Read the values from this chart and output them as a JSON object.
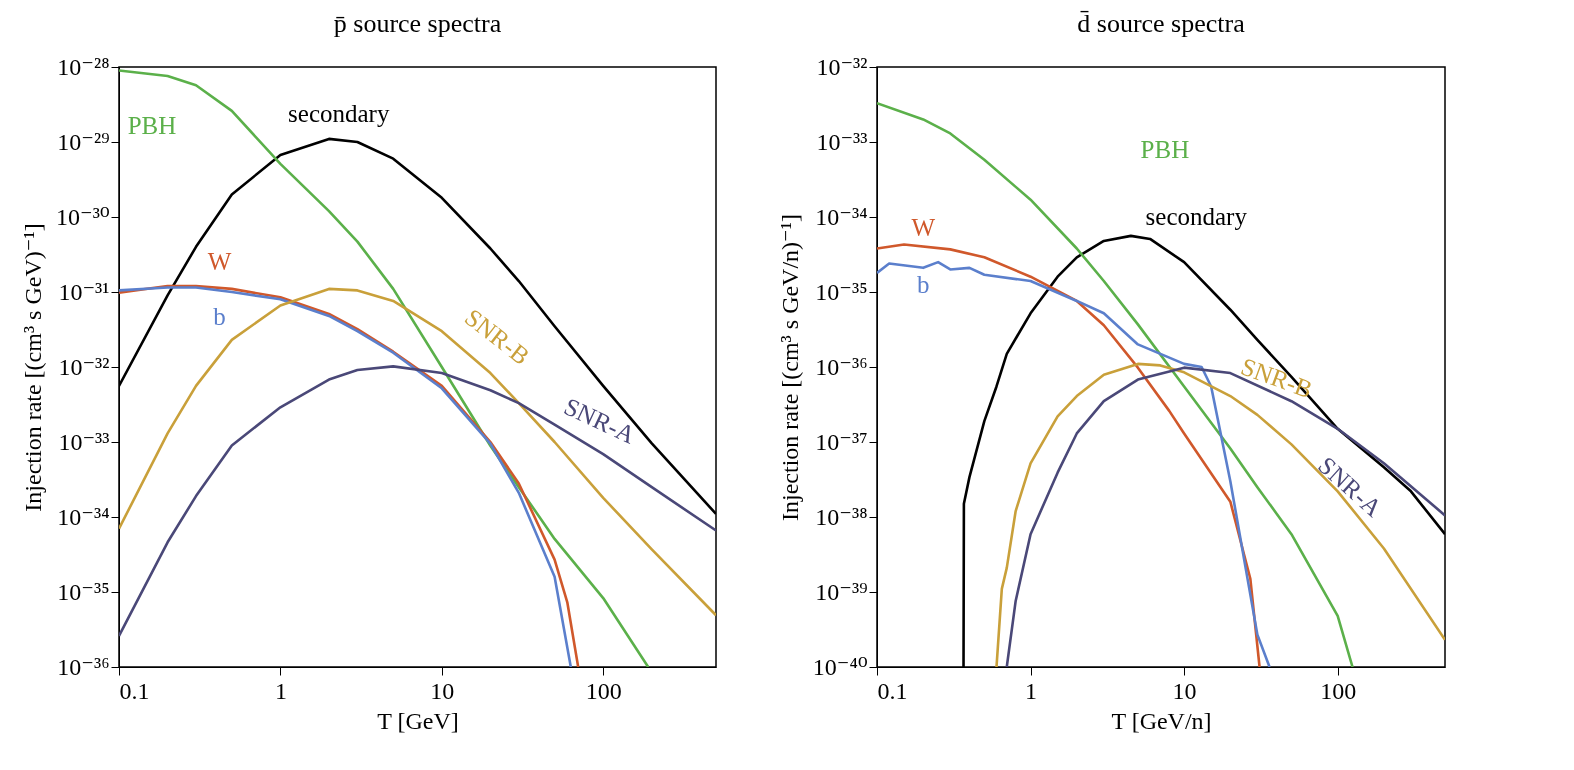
{
  "chart_data": [
    {
      "type": "line",
      "title": "p̄ source spectra",
      "xlabel": "T [GeV]",
      "ylabel": "Injection rate [(cm³ s GeV)⁻¹]",
      "log": "xy",
      "xlim": [
        0.1,
        500
      ],
      "xticks": [
        0.1,
        1,
        10,
        100
      ],
      "ylim": [
        1e-36,
        1e-28
      ],
      "yticks": [
        {
          "value": 1e-28,
          "label": "10⁻²⁸"
        },
        {
          "value": 1e-29,
          "label": "10⁻²⁹"
        },
        {
          "value": 1e-30,
          "label": "10⁻³⁰"
        },
        {
          "value": 1e-31,
          "label": "10⁻³¹"
        },
        {
          "value": 1e-32,
          "label": "10⁻³²"
        },
        {
          "value": 1e-33,
          "label": "10⁻³³"
        },
        {
          "value": 1e-34,
          "label": "10⁻³⁴"
        },
        {
          "value": 1e-35,
          "label": "10⁻³⁵"
        },
        {
          "value": 1e-36,
          "label": "10⁻³⁶"
        }
      ],
      "series": [
        {
          "name": "secondary",
          "color": "#000000",
          "x": [
            0.1,
            0.2,
            0.3,
            0.5,
            1,
            2,
            3,
            5,
            10,
            20,
            30,
            50,
            100,
            200,
            500
          ],
          "values": [
            5.6e-33,
            9e-32,
            4e-31,
            2e-30,
            6.7e-30,
            1.1e-29,
            1e-29,
            6e-30,
            1.8e-30,
            3.8e-31,
            1.4e-31,
            3.5e-32,
            5.6e-33,
            9.6e-34,
            1.1e-34
          ]
        },
        {
          "name": "PBH",
          "color": "#5bb04a",
          "x": [
            0.1,
            0.2,
            0.3,
            0.5,
            1,
            2,
            3,
            5,
            10,
            20,
            30,
            50,
            100,
            190
          ],
          "values": [
            9e-29,
            7.6e-29,
            5.7e-29,
            2.6e-29,
            5.1e-30,
            1.2e-30,
            4.7e-31,
            1.1e-31,
            1e-32,
            8.9e-34,
            2.5e-34,
            5.1e-35,
            8.3e-36,
            1e-36
          ]
        },
        {
          "name": "W",
          "color": "#d0582b",
          "x": [
            0.1,
            0.2,
            0.3,
            0.5,
            1,
            2,
            3,
            5,
            10,
            20,
            30,
            50,
            60,
            70
          ],
          "values": [
            9.8e-32,
            1.2e-31,
            1.2e-31,
            1.1e-31,
            8.5e-32,
            5.1e-32,
            3.2e-32,
            1.6e-32,
            5.6e-33,
            1e-33,
            2.8e-34,
            2.7e-35,
            7.2e-36,
            1e-36
          ]
        },
        {
          "name": "b",
          "color": "#5b7fcc",
          "x": [
            0.1,
            0.2,
            0.3,
            0.5,
            1,
            2,
            3,
            5,
            10,
            20,
            30,
            50,
            63
          ],
          "values": [
            1.05e-31,
            1.15e-31,
            1.15e-31,
            1e-31,
            8e-32,
            4.8e-32,
            3e-32,
            1.55e-32,
            5.2e-33,
            9.5e-34,
            2.1e-34,
            1.6e-35,
            1e-36
          ]
        },
        {
          "name": "SNR-B",
          "color": "#c9a03a",
          "x": [
            0.1,
            0.2,
            0.3,
            0.5,
            1,
            2,
            3,
            5,
            10,
            20,
            30,
            50,
            100,
            200,
            500
          ],
          "values": [
            7e-35,
            1.3e-33,
            5.6e-33,
            2.3e-32,
            6.6e-32,
            1.1e-31,
            1.05e-31,
            7.6e-32,
            3e-32,
            8.3e-33,
            3.3e-33,
            1e-33,
            1.8e-34,
            3.7e-35,
            4.9e-36
          ]
        },
        {
          "name": "SNR-A",
          "color": "#4a4878",
          "x": [
            0.1,
            0.2,
            0.3,
            0.5,
            1,
            2,
            3,
            5,
            10,
            20,
            30,
            50,
            100,
            200,
            500
          ],
          "values": [
            2.6e-36,
            4.6e-35,
            1.9e-34,
            9e-34,
            2.9e-33,
            6.8e-33,
            9.1e-33,
            1.02e-32,
            8.3e-33,
            4.9e-33,
            3.3e-33,
            1.7e-33,
            6.9e-34,
            2.5e-34,
            6.6e-35
          ]
        }
      ]
    },
    {
      "type": "line",
      "title": "d̄ source spectra",
      "xlabel": "T [GeV/n]",
      "ylabel": "Injection rate [(cm³ s GeV/n)⁻¹]",
      "log": "xy",
      "xlim": [
        0.1,
        500
      ],
      "xticks": [
        0.1,
        1,
        10,
        100
      ],
      "ylim": [
        1e-40,
        1e-32
      ],
      "yticks": [
        {
          "value": 1e-32,
          "label": "10⁻³²"
        },
        {
          "value": 1e-33,
          "label": "10⁻³³"
        },
        {
          "value": 1e-34,
          "label": "10⁻³⁴"
        },
        {
          "value": 1e-35,
          "label": "10⁻³⁵"
        },
        {
          "value": 1e-36,
          "label": "10⁻³⁶"
        },
        {
          "value": 1e-37,
          "label": "10⁻³⁷"
        },
        {
          "value": 1e-38,
          "label": "10⁻³⁸"
        },
        {
          "value": 1e-39,
          "label": "10⁻³⁹"
        },
        {
          "value": 1e-40,
          "label": "10⁻⁴⁰"
        }
      ],
      "series": [
        {
          "name": "secondary",
          "color": "#000000",
          "x": [
            0.366,
            0.368,
            0.4,
            0.5,
            0.6,
            0.7,
            1,
            1.5,
            2,
            3,
            4.5,
            6,
            10,
            20,
            30,
            50,
            100,
            200,
            300,
            500
          ],
          "values": [
            1e-40,
            1.5e-38,
            3.4e-38,
            1.9e-37,
            5.5e-37,
            1.5e-36,
            5.2e-36,
            1.6e-35,
            2.9e-35,
            4.8e-35,
            5.6e-35,
            5.1e-35,
            2.5e-35,
            5.8e-36,
            2.3e-36,
            7.4e-37,
            1.5e-37,
            4.6e-38,
            2.2e-38,
            5.9e-39
          ]
        },
        {
          "name": "PBH",
          "color": "#5bb04a",
          "x": [
            0.1,
            0.2,
            0.3,
            0.5,
            1,
            2,
            3,
            5,
            10,
            20,
            30,
            50,
            100,
            125
          ],
          "values": [
            3.3e-33,
            2e-33,
            1.3e-33,
            5.8e-34,
            1.7e-34,
            3.8e-35,
            1.4e-35,
            3.7e-36,
            5.5e-37,
            8.2e-38,
            2.5e-38,
            5.9e-39,
            4.8e-40,
            1e-40
          ]
        },
        {
          "name": "W",
          "color": "#d0582b",
          "x": [
            0.1,
            0.15,
            0.3,
            0.5,
            1,
            2,
            3,
            5,
            8,
            10,
            20,
            27,
            31
          ],
          "values": [
            3.8e-35,
            4.3e-35,
            3.7e-35,
            2.9e-35,
            1.6e-35,
            7.6e-36,
            3.6e-36,
            9.8e-37,
            2.6e-37,
            1.3e-37,
            1.6e-38,
            1.5e-39,
            1e-40
          ]
        },
        {
          "name": "b",
          "color": "#5b7fcc",
          "x": [
            0.1,
            0.12,
            0.2,
            0.25,
            0.3,
            0.4,
            0.5,
            1,
            2,
            3,
            5,
            10,
            13,
            15,
            20,
            30,
            36
          ],
          "values": [
            1.8e-35,
            2.4e-35,
            2.1e-35,
            2.5e-35,
            2e-35,
            2.1e-35,
            1.7e-35,
            1.4e-35,
            7.6e-36,
            5.2e-36,
            2e-36,
            1.1e-36,
            1e-36,
            5.5e-37,
            3e-38,
            2.7e-40,
            1e-40
          ]
        },
        {
          "name": "SNR-B",
          "color": "#c9a03a",
          "x": [
            0.6,
            0.65,
            0.7,
            0.8,
            1,
            1.5,
            2,
            3,
            5,
            7,
            10,
            20,
            30,
            50,
            100,
            200,
            500
          ],
          "values": [
            1e-40,
            1.1e-39,
            2.1e-39,
            1.2e-38,
            5.2e-38,
            2.2e-37,
            4.1e-37,
            7.9e-37,
            1.1e-36,
            1.05e-36,
            8.5e-37,
            4.1e-37,
            2.3e-37,
            9.3e-38,
            2.2e-38,
            3.8e-39,
            2.3e-40
          ]
        },
        {
          "name": "SNR-A",
          "color": "#4a4878",
          "x": [
            0.7,
            0.8,
            1,
            1.5,
            2,
            3,
            5,
            10,
            20,
            50,
            100,
            200,
            500
          ],
          "values": [
            1e-40,
            7.6e-40,
            5.9e-39,
            3.9e-38,
            1.3e-37,
            3.5e-37,
            6.8e-37,
            9.8e-37,
            8.3e-37,
            3.5e-37,
            1.5e-37,
            5.2e-38,
            1.05e-38
          ]
        }
      ]
    }
  ]
}
